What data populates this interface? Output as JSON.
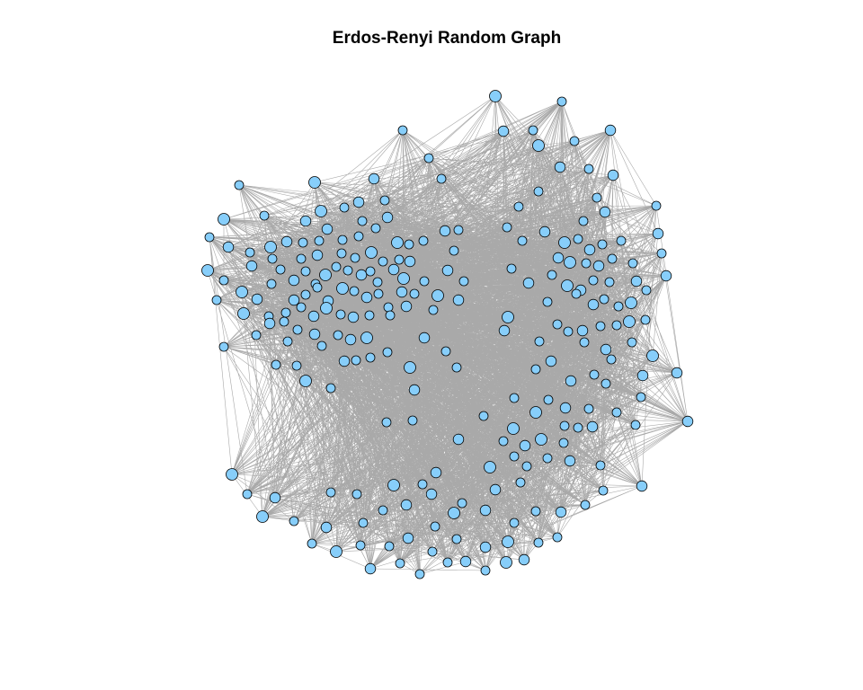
{
  "title": "Erdos-Renyi Random Graph",
  "graph": {
    "model": "Erdos-Renyi",
    "edge_color": "#a9a9a9",
    "node_fill": "#87cefa",
    "node_stroke": "#000000",
    "background": "#ffffff"
  }
}
